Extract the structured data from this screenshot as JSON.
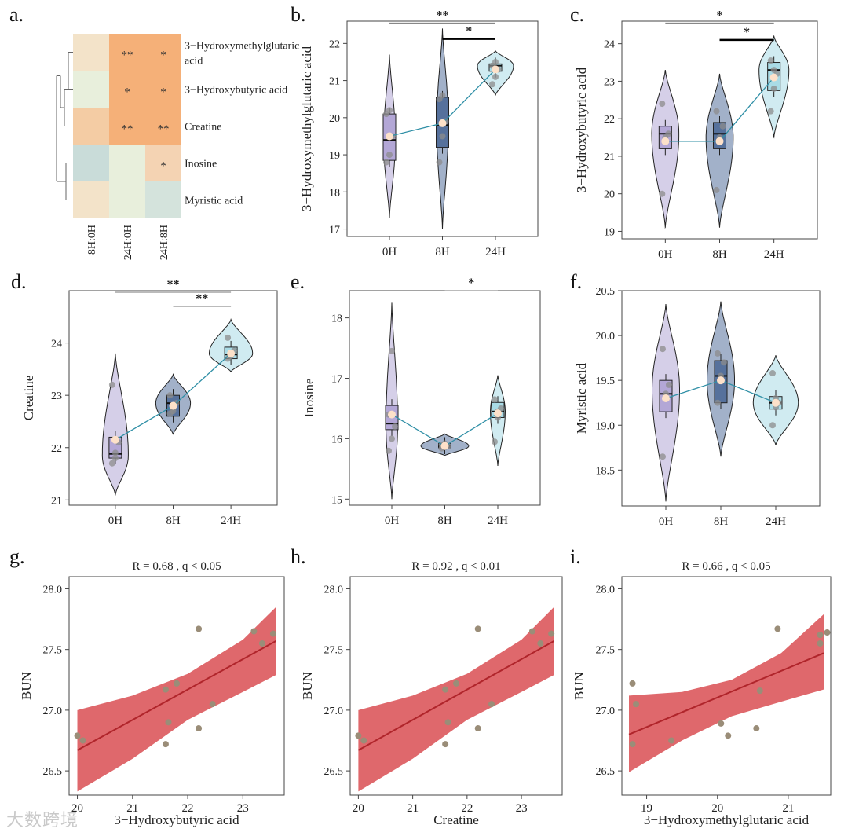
{
  "panel_labels": [
    "a.",
    "b.",
    "c.",
    "d.",
    "e.",
    "f.",
    "g.",
    "h.",
    "i."
  ],
  "watermark": "大数跨境",
  "chart_data": [
    {
      "panel": "a.",
      "type": "heatmap",
      "rows": [
        "3−Hydroxymethylglutaric acid",
        "3−Hydroxybutyric acid",
        "Creatine",
        "Inosine",
        "Myristic acid"
      ],
      "row_label_lines": [
        [
          "3−Hydroxymethylglutaric",
          "acid"
        ],
        [
          "3−Hydroxybutyric acid"
        ],
        [
          "Creatine"
        ],
        [
          "Inosine"
        ],
        [
          "Myristic acid"
        ]
      ],
      "columns": [
        "8H:0H",
        "24H:0H",
        "24H:8H"
      ],
      "cell_colors": [
        [
          "#f3e3c9",
          "#f5b078",
          "#f5b078"
        ],
        [
          "#e8efdc",
          "#f5b078",
          "#f5b078"
        ],
        [
          "#f4cca4",
          "#f5b078",
          "#f5b078"
        ],
        [
          "#c9dcd9",
          "#e8efdc",
          "#f4d3b3"
        ],
        [
          "#f3e3c9",
          "#e8efdc",
          "#d4e3dc"
        ]
      ],
      "significance": [
        [
          "",
          "**",
          "*"
        ],
        [
          "",
          "*",
          "*"
        ],
        [
          "",
          "**",
          "**"
        ],
        [
          "",
          "",
          "*"
        ],
        [
          "",
          "",
          ""
        ]
      ]
    },
    {
      "panel": "b.",
      "type": "violin",
      "ylabel": "3−Hydroxymethylglutaric acid",
      "groups": [
        "0H",
        "8H",
        "24H"
      ],
      "ylim": [
        16.8,
        22.6
      ],
      "yticks": [
        17,
        18,
        19,
        20,
        21,
        22
      ],
      "colors": [
        "#b3a7d6",
        "#56719c",
        "#a9dbe6"
      ],
      "violins": [
        {
          "min": 17.3,
          "max": 21.7,
          "mode": 19.4,
          "width": 0.22
        },
        {
          "min": 17.0,
          "max": 22.4,
          "mode": 19.8,
          "width": 0.22
        },
        {
          "min": 20.6,
          "max": 21.8,
          "mode": 21.4,
          "width": 0.68
        }
      ],
      "box": [
        [
          18.85,
          19.4,
          20.1
        ],
        [
          19.2,
          19.8,
          20.55
        ],
        [
          21.25,
          21.4,
          21.45
        ]
      ],
      "means": [
        19.5,
        19.85,
        21.3
      ],
      "points": [
        [
          18.8,
          19.0,
          19.5,
          20.1,
          20.2
        ],
        [
          18.8,
          19.5,
          19.9,
          20.5,
          20.6
        ],
        [
          20.9,
          21.1,
          21.3,
          21.4,
          21.5
        ]
      ],
      "sig": [
        {
          "from": 0,
          "to": 2,
          "label": "**",
          "y": 22.55,
          "bold": false
        },
        {
          "from": 1,
          "to": 2,
          "label": "*",
          "y": 22.12,
          "bold": true
        }
      ]
    },
    {
      "panel": "c.",
      "type": "violin",
      "ylabel": "3−Hydroxybutyric acid",
      "groups": [
        "0H",
        "8H",
        "24H"
      ],
      "ylim": [
        18.8,
        24.6
      ],
      "yticks": [
        19,
        20,
        21,
        22,
        23,
        24
      ],
      "colors": [
        "#b3a7d6",
        "#56719c",
        "#a9dbe6"
      ],
      "violins": [
        {
          "min": 19.1,
          "max": 23.3,
          "mode": 21.6,
          "width": 0.5
        },
        {
          "min": 19.1,
          "max": 23.2,
          "mode": 21.5,
          "width": 0.5
        },
        {
          "min": 21.5,
          "max": 24.2,
          "mode": 23.3,
          "width": 0.55
        }
      ],
      "box": [
        [
          21.2,
          21.6,
          21.8
        ],
        [
          21.2,
          21.6,
          21.9
        ],
        [
          22.75,
          23.3,
          23.5
        ]
      ],
      "means": [
        21.4,
        21.4,
        23.1
      ],
      "points": [
        [
          20.0,
          21.5,
          21.6,
          22.4,
          21.4
        ],
        [
          20.1,
          21.5,
          21.8,
          22.2,
          21.4
        ],
        [
          22.2,
          22.8,
          23.2,
          23.55,
          23.3
        ]
      ],
      "sig": [
        {
          "from": 0,
          "to": 2,
          "label": "*",
          "y": 24.55,
          "bold": false
        },
        {
          "from": 1,
          "to": 2,
          "label": "*",
          "y": 24.1,
          "bold": true
        }
      ]
    },
    {
      "panel": "d.",
      "type": "violin",
      "ylabel": "Creatine",
      "groups": [
        "0H",
        "8H",
        "24H"
      ],
      "ylim": [
        20.9,
        25.0
      ],
      "yticks": [
        21,
        22,
        23,
        24
      ],
      "colors": [
        "#b3a7d6",
        "#56719c",
        "#a9dbe6"
      ],
      "violins": [
        {
          "min": 21.1,
          "max": 23.8,
          "mode": 21.85,
          "width": 0.45
        },
        {
          "min": 22.25,
          "max": 23.4,
          "mode": 22.85,
          "width": 0.6
        },
        {
          "min": 23.45,
          "max": 24.45,
          "mode": 23.8,
          "width": 0.75
        }
      ],
      "box": [
        [
          21.8,
          21.88,
          22.2
        ],
        [
          22.6,
          22.85,
          23.0
        ],
        [
          23.7,
          23.78,
          23.92
        ]
      ],
      "means": [
        22.15,
        22.8,
        23.8
      ],
      "points": [
        [
          21.7,
          21.9,
          22.1,
          23.2,
          21.8
        ],
        [
          22.65,
          22.7,
          22.85,
          23.0,
          22.75
        ],
        [
          23.7,
          23.75,
          23.85,
          24.1,
          23.8
        ]
      ],
      "sig": [
        {
          "from": 0,
          "to": 2,
          "label": "**",
          "y": 24.97,
          "bold": false
        },
        {
          "from": 1,
          "to": 2,
          "label": "**",
          "y": 24.7,
          "bold": false
        }
      ]
    },
    {
      "panel": "e.",
      "type": "violin",
      "ylabel": "Inosine",
      "groups": [
        "0H",
        "8H",
        "24H"
      ],
      "ylim": [
        14.9,
        18.45
      ],
      "yticks": [
        15,
        16,
        17,
        18
      ],
      "colors": [
        "#b3a7d6",
        "#56719c",
        "#a9dbe6"
      ],
      "violins": [
        {
          "min": 15.0,
          "max": 18.25,
          "mode": 16.2,
          "width": 0.22
        },
        {
          "min": 15.72,
          "max": 16.08,
          "mode": 15.88,
          "width": 0.9
        },
        {
          "min": 15.55,
          "max": 17.05,
          "mode": 16.45,
          "width": 0.28
        }
      ],
      "box": [
        [
          16.15,
          16.25,
          16.55
        ],
        [
          15.85,
          15.88,
          15.92
        ],
        [
          16.35,
          16.45,
          16.6
        ]
      ],
      "means": [
        16.4,
        15.88,
        16.42
      ],
      "points": [
        [
          15.8,
          16.0,
          16.2,
          16.4,
          17.45
        ],
        [
          15.84,
          15.86,
          15.88,
          15.9,
          15.92
        ],
        [
          15.95,
          16.35,
          16.5,
          16.65,
          16.45
        ]
      ],
      "sig": [
        {
          "from": 1,
          "to": 2,
          "label": "*",
          "y": 18.45,
          "bold": false
        }
      ]
    },
    {
      "panel": "f.",
      "type": "violin",
      "ylabel": "Myristic acid",
      "groups": [
        "0H",
        "8H",
        "24H"
      ],
      "ylim": [
        18.1,
        20.5
      ],
      "yticks": [
        18.5,
        19.0,
        19.5,
        20.0,
        20.5
      ],
      "colors": [
        "#b3a7d6",
        "#56719c",
        "#a9dbe6"
      ],
      "violins": [
        {
          "min": 18.15,
          "max": 20.35,
          "mode": 19.4,
          "width": 0.5
        },
        {
          "min": 18.65,
          "max": 20.38,
          "mode": 19.5,
          "width": 0.5
        },
        {
          "min": 18.78,
          "max": 19.78,
          "mode": 19.25,
          "width": 0.82
        }
      ],
      "box": [
        [
          19.15,
          19.35,
          19.5
        ],
        [
          19.25,
          19.55,
          19.72
        ],
        [
          19.18,
          19.25,
          19.32
        ]
      ],
      "means": [
        19.3,
        19.5,
        19.25
      ],
      "points": [
        [
          18.65,
          19.35,
          19.45,
          19.85,
          19.3
        ],
        [
          19.25,
          19.55,
          19.7,
          19.8,
          19.5
        ],
        [
          19.0,
          19.2,
          19.25,
          19.58,
          19.3
        ]
      ],
      "sig": []
    },
    {
      "panel": "g.",
      "type": "scatter",
      "title": "R = 0.68 , q < 0.05",
      "xlabel": "3−Hydroxybutyric acid",
      "ylabel": "BUN",
      "xlim": [
        19.85,
        23.75
      ],
      "ylim": [
        26.3,
        28.1
      ],
      "xticks": [
        20,
        21,
        22,
        23
      ],
      "yticks": [
        26.5,
        27.0,
        27.5,
        28.0
      ],
      "x": [
        20.0,
        20.1,
        21.6,
        21.6,
        21.65,
        21.8,
        22.2,
        22.2,
        22.45,
        23.2,
        23.35,
        23.55
      ],
      "y": [
        26.79,
        26.75,
        26.72,
        27.17,
        26.9,
        27.22,
        26.85,
        27.67,
        27.05,
        27.65,
        27.55,
        27.63
      ],
      "fit_line": [
        [
          20.0,
          26.67
        ],
        [
          23.6,
          27.57
        ]
      ],
      "band_upper": [
        [
          20.0,
          27.0
        ],
        [
          21.0,
          27.12
        ],
        [
          22.0,
          27.3
        ],
        [
          23.0,
          27.58
        ],
        [
          23.6,
          27.85
        ]
      ],
      "band_lower": [
        [
          20.0,
          26.33
        ],
        [
          21.0,
          26.6
        ],
        [
          22.0,
          26.92
        ],
        [
          23.0,
          27.15
        ],
        [
          23.6,
          27.29
        ]
      ]
    },
    {
      "panel": "h.",
      "type": "scatter",
      "title": "R = 0.92 , q < 0.01",
      "xlabel": "Creatine",
      "ylabel": "BUN",
      "xlim": [
        19.85,
        23.75
      ],
      "ylim": [
        26.3,
        28.1
      ],
      "xticks": [
        20,
        21,
        22,
        23
      ],
      "yticks": [
        26.5,
        27.0,
        27.5,
        28.0
      ],
      "x": [
        20.0,
        20.1,
        21.6,
        21.6,
        21.65,
        21.8,
        22.2,
        22.2,
        22.45,
        23.2,
        23.35,
        23.55
      ],
      "y": [
        26.79,
        26.75,
        26.72,
        27.17,
        26.9,
        27.22,
        26.85,
        27.67,
        27.05,
        27.65,
        27.55,
        27.63
      ],
      "fit_line": [
        [
          20.0,
          26.67
        ],
        [
          23.6,
          27.57
        ]
      ],
      "band_upper": [
        [
          20.0,
          27.0
        ],
        [
          21.0,
          27.12
        ],
        [
          22.0,
          27.3
        ],
        [
          23.0,
          27.58
        ],
        [
          23.6,
          27.85
        ]
      ],
      "band_lower": [
        [
          20.0,
          26.33
        ],
        [
          21.0,
          26.6
        ],
        [
          22.0,
          26.92
        ],
        [
          23.0,
          27.15
        ],
        [
          23.6,
          27.29
        ]
      ]
    },
    {
      "panel": "i.",
      "type": "scatter",
      "title": "R = 0.66 , q < 0.05",
      "xlabel": "3−Hydroxymethylglutaric acid",
      "ylabel": "BUN",
      "xlim": [
        18.65,
        21.6
      ],
      "ylim": [
        26.3,
        28.1
      ],
      "xticks": [
        19,
        20,
        21
      ],
      "yticks": [
        26.5,
        27.0,
        27.5,
        28.0
      ],
      "x": [
        18.8,
        18.8,
        18.85,
        19.35,
        20.05,
        20.15,
        20.55,
        20.6,
        20.85,
        21.45,
        21.45,
        21.55
      ],
      "y": [
        27.22,
        26.72,
        27.05,
        26.75,
        26.89,
        26.79,
        26.85,
        27.16,
        27.67,
        27.55,
        27.62,
        27.64
      ],
      "fit_line": [
        [
          18.75,
          26.8
        ],
        [
          21.5,
          27.47
        ]
      ],
      "band_upper": [
        [
          18.75,
          27.12
        ],
        [
          19.5,
          27.15
        ],
        [
          20.2,
          27.25
        ],
        [
          20.9,
          27.47
        ],
        [
          21.5,
          27.79
        ]
      ],
      "band_lower": [
        [
          18.75,
          26.49
        ],
        [
          19.5,
          26.75
        ],
        [
          20.2,
          26.95
        ],
        [
          20.9,
          27.07
        ],
        [
          21.5,
          27.17
        ]
      ]
    }
  ]
}
